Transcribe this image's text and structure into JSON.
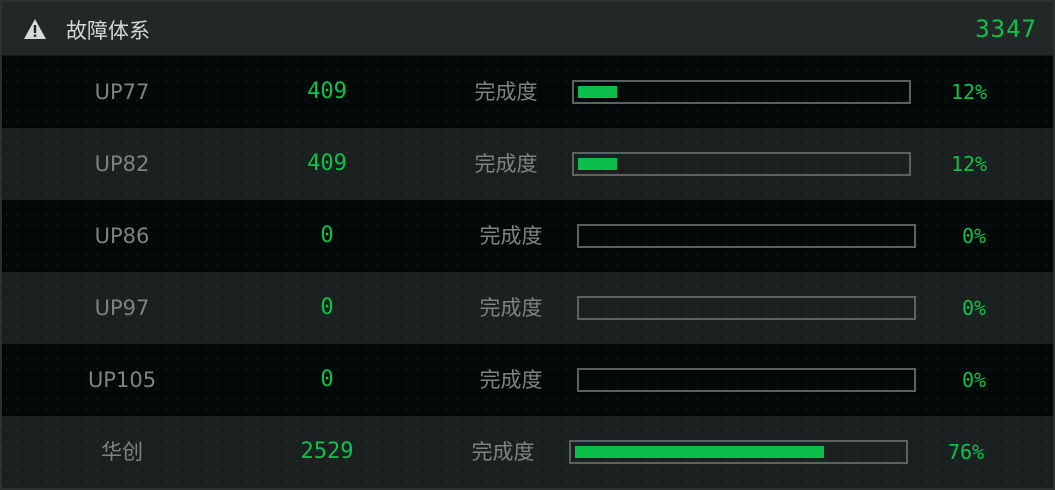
{
  "header": {
    "title": "故障体系",
    "total": "3347",
    "icon": "warning-icon"
  },
  "rows": [
    {
      "name": "UP77",
      "value": "409",
      "label": "完成度",
      "percent": "12%",
      "progress": 12
    },
    {
      "name": "UP82",
      "value": "409",
      "label": "完成度",
      "percent": "12%",
      "progress": 12
    },
    {
      "name": "UP86",
      "value": "0",
      "label": "完成度",
      "percent": "0%",
      "progress": 0
    },
    {
      "name": "UP97",
      "value": "0",
      "label": "完成度",
      "percent": "0%",
      "progress": 0
    },
    {
      "name": "UP105",
      "value": "0",
      "label": "完成度",
      "percent": "0%",
      "progress": 0
    },
    {
      "name": "华创",
      "value": "2529",
      "label": "完成度",
      "percent": "76%",
      "progress": 76
    }
  ],
  "colors": {
    "accent": "#0cc24a",
    "bar_border": "#5a6361"
  }
}
